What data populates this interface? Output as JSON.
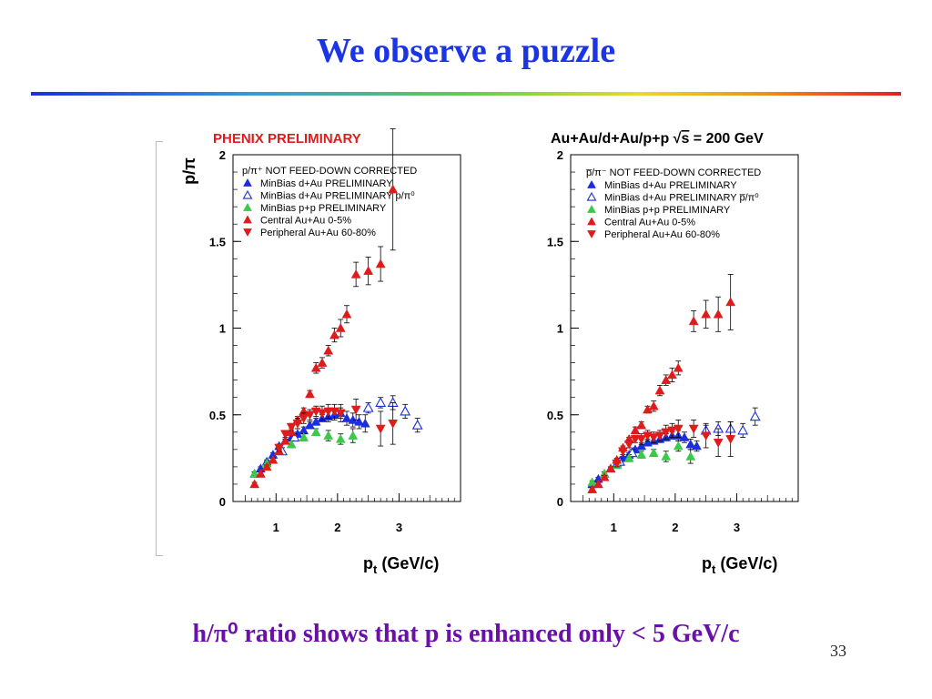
{
  "slide": {
    "title": "We observe a puzzle",
    "caption": "h/π⁰ ratio shows that p is enhanced only <  5 GeV/c",
    "page_number": "33"
  },
  "colors": {
    "title": "#1b35e6",
    "caption": "#6a10a8",
    "central": "#e01b1b",
    "dau": "#1a2ee0",
    "pp": "#3cc94a",
    "header_red": "#e01b1b"
  },
  "chart_data": [
    {
      "type": "scatter",
      "header": "PHENIX PRELIMINARY",
      "ylabel": "p/π",
      "xlabel": "p",
      "xlabel_sub": "t",
      "xlabel_unit": " (GeV/c)",
      "xlim": [
        0.3,
        4.0
      ],
      "ylim": [
        0,
        2
      ],
      "xticks": [
        "1",
        "2",
        "3"
      ],
      "yticks": [
        "0",
        "0.5",
        "1",
        "1.5",
        "2"
      ],
      "legend_title": "p/π⁺ NOT FEED-DOWN CORRECTED",
      "legend": [
        {
          "label": "MinBias d+Au PRELIMINARY",
          "marker": "up-filled",
          "color": "#1a2ee0"
        },
        {
          "label": "MinBias d+Au PRELIMINARY p/π⁰",
          "marker": "up-open",
          "color": "#1a2ee0"
        },
        {
          "label": "MinBias p+p PRELIMINARY",
          "marker": "up-filled",
          "color": "#3cc94a"
        },
        {
          "label": "Central    Au+Au  0-5%",
          "marker": "up-filled",
          "color": "#e01b1b"
        },
        {
          "label": "Peripheral Au+Au 60-80%",
          "marker": "down-filled",
          "color": "#e01b1b"
        }
      ],
      "series": [
        {
          "name": "MinBias d+Au PRELIMINARY",
          "marker": "up-filled",
          "color": "#1a2ee0",
          "x": [
            0.65,
            0.75,
            0.85,
            0.95,
            1.05,
            1.15,
            1.25,
            1.35,
            1.45,
            1.55,
            1.65,
            1.75,
            1.85,
            1.95,
            2.05,
            2.15,
            2.25,
            2.35,
            2.45
          ],
          "y": [
            0.16,
            0.19,
            0.23,
            0.27,
            0.32,
            0.35,
            0.37,
            0.39,
            0.41,
            0.44,
            0.46,
            0.48,
            0.49,
            0.5,
            0.51,
            0.48,
            0.47,
            0.46,
            0.45
          ],
          "err": [
            0.01,
            0.01,
            0.01,
            0.01,
            0.01,
            0.01,
            0.01,
            0.01,
            0.02,
            0.02,
            0.02,
            0.02,
            0.03,
            0.03,
            0.03,
            0.04,
            0.04,
            0.04,
            0.05
          ]
        },
        {
          "name": "MinBias d+Au PRELIMINARY p/π⁰",
          "marker": "up-open",
          "color": "#1a2ee0",
          "x": [
            1.1,
            1.3,
            2.5,
            2.7,
            2.9,
            3.1,
            3.3
          ],
          "y": [
            0.29,
            0.37,
            0.54,
            0.57,
            0.57,
            0.52,
            0.44
          ],
          "err": [
            0.02,
            0.02,
            0.03,
            0.03,
            0.04,
            0.04,
            0.04
          ]
        },
        {
          "name": "MinBias p+p PRELIMINARY",
          "marker": "up-filled",
          "color": "#3cc94a",
          "x": [
            0.65,
            0.85,
            1.05,
            1.25,
            1.45,
            1.65,
            1.85,
            2.05,
            2.25
          ],
          "y": [
            0.16,
            0.22,
            0.29,
            0.33,
            0.37,
            0.4,
            0.38,
            0.36,
            0.38
          ],
          "err": [
            0.01,
            0.01,
            0.01,
            0.02,
            0.02,
            0.02,
            0.03,
            0.03,
            0.04
          ]
        },
        {
          "name": "Central    Au+Au  0-5%",
          "marker": "up-filled",
          "color": "#e01b1b",
          "x": [
            0.65,
            0.75,
            0.85,
            0.95,
            1.05,
            1.15,
            1.25,
            1.35,
            1.45,
            1.55,
            1.65,
            1.75,
            1.85,
            1.95,
            2.05,
            2.15,
            2.3,
            2.5,
            2.7,
            2.9
          ],
          "y": [
            0.1,
            0.16,
            0.2,
            0.24,
            0.29,
            0.35,
            0.4,
            0.47,
            0.52,
            0.62,
            0.77,
            0.8,
            0.87,
            0.96,
            1.0,
            1.08,
            1.31,
            1.33,
            1.37,
            1.8
          ],
          "err": [
            0.01,
            0.01,
            0.01,
            0.01,
            0.01,
            0.01,
            0.02,
            0.02,
            0.02,
            0.02,
            0.03,
            0.03,
            0.03,
            0.04,
            0.05,
            0.05,
            0.07,
            0.08,
            0.1,
            0.35
          ]
        },
        {
          "name": "Peripheral Au+Au 60-80%",
          "marker": "down-filled",
          "color": "#e01b1b",
          "x": [
            1.05,
            1.15,
            1.25,
            1.35,
            1.45,
            1.55,
            1.65,
            1.75,
            1.85,
            1.95,
            2.05,
            2.3,
            2.7,
            2.9
          ],
          "y": [
            0.31,
            0.39,
            0.43,
            0.45,
            0.48,
            0.5,
            0.52,
            0.51,
            0.52,
            0.52,
            0.51,
            0.53,
            0.42,
            0.45
          ],
          "err": [
            0.02,
            0.02,
            0.02,
            0.03,
            0.03,
            0.03,
            0.03,
            0.04,
            0.04,
            0.04,
            0.05,
            0.06,
            0.1,
            0.12
          ]
        }
      ]
    },
    {
      "type": "scatter",
      "header": "Au+Au/d+Au/p+p ",
      "header_sqrt": "s",
      "header_tail": " = 200 GeV",
      "ylabel": "",
      "xlabel": "p",
      "xlabel_sub": "t",
      "xlabel_unit": " (GeV/c)",
      "xlim": [
        0.3,
        4.0
      ],
      "ylim": [
        0,
        2
      ],
      "xticks": [
        "1",
        "2",
        "3"
      ],
      "yticks": [
        "0",
        "0.5",
        "1",
        "1.5",
        "2"
      ],
      "legend_title": "p̅/π⁻ NOT FEED-DOWN CORRECTED",
      "legend": [
        {
          "label": "MinBias d+Au PRELIMINARY",
          "marker": "up-filled",
          "color": "#1a2ee0"
        },
        {
          "label": "MinBias d+Au PRELIMINARY p̅/π⁰",
          "marker": "up-open",
          "color": "#1a2ee0"
        },
        {
          "label": "MinBias p+p PRELIMINARY",
          "marker": "up-filled",
          "color": "#3cc94a"
        },
        {
          "label": "Central    Au+Au 0-5%",
          "marker": "up-filled",
          "color": "#e01b1b"
        },
        {
          "label": "Peripheral Au+Au 60-80%",
          "marker": "down-filled",
          "color": "#e01b1b"
        }
      ],
      "series": [
        {
          "name": "MinBias d+Au PRELIMINARY",
          "marker": "up-filled",
          "color": "#1a2ee0",
          "x": [
            0.65,
            0.75,
            0.85,
            0.95,
            1.05,
            1.15,
            1.25,
            1.35,
            1.45,
            1.55,
            1.65,
            1.75,
            1.85,
            1.95,
            2.05,
            2.15,
            2.25,
            2.35
          ],
          "y": [
            0.1,
            0.13,
            0.16,
            0.19,
            0.22,
            0.25,
            0.27,
            0.3,
            0.32,
            0.34,
            0.35,
            0.36,
            0.37,
            0.38,
            0.38,
            0.37,
            0.33,
            0.32
          ],
          "err": [
            0.01,
            0.01,
            0.01,
            0.01,
            0.01,
            0.01,
            0.01,
            0.01,
            0.02,
            0.02,
            0.02,
            0.02,
            0.02,
            0.02,
            0.03,
            0.03,
            0.03,
            0.03
          ]
        },
        {
          "name": "MinBias d+Au PRELIMINARY p̅/π⁰",
          "marker": "up-open",
          "color": "#1a2ee0",
          "x": [
            1.1,
            1.3,
            2.5,
            2.7,
            2.9,
            3.1,
            3.3
          ],
          "y": [
            0.23,
            0.28,
            0.41,
            0.42,
            0.42,
            0.41,
            0.49
          ],
          "err": [
            0.02,
            0.02,
            0.03,
            0.04,
            0.04,
            0.04,
            0.05
          ]
        },
        {
          "name": "MinBias p+p PRELIMINARY",
          "marker": "up-filled",
          "color": "#3cc94a",
          "x": [
            0.65,
            0.85,
            1.05,
            1.25,
            1.45,
            1.65,
            1.85,
            2.05,
            2.25
          ],
          "y": [
            0.11,
            0.16,
            0.21,
            0.25,
            0.27,
            0.28,
            0.26,
            0.32,
            0.26
          ],
          "err": [
            0.01,
            0.01,
            0.01,
            0.02,
            0.02,
            0.02,
            0.03,
            0.03,
            0.04
          ]
        },
        {
          "name": "Central    Au+Au 0-5%",
          "marker": "up-filled",
          "color": "#e01b1b",
          "x": [
            0.65,
            0.75,
            0.85,
            0.95,
            1.05,
            1.15,
            1.25,
            1.35,
            1.45,
            1.55,
            1.65,
            1.75,
            1.85,
            1.95,
            2.05,
            2.3,
            2.5,
            2.7,
            2.9
          ],
          "y": [
            0.07,
            0.1,
            0.14,
            0.19,
            0.24,
            0.31,
            0.36,
            0.41,
            0.44,
            0.53,
            0.55,
            0.64,
            0.7,
            0.73,
            0.77,
            1.04,
            1.08,
            1.08,
            1.15
          ],
          "err": [
            0.01,
            0.01,
            0.01,
            0.01,
            0.01,
            0.01,
            0.01,
            0.02,
            0.02,
            0.02,
            0.03,
            0.03,
            0.03,
            0.04,
            0.04,
            0.06,
            0.08,
            0.1,
            0.16
          ]
        },
        {
          "name": "Peripheral Au+Au 60-80%",
          "marker": "down-filled",
          "color": "#e01b1b",
          "x": [
            1.05,
            1.15,
            1.25,
            1.35,
            1.45,
            1.55,
            1.65,
            1.75,
            1.85,
            1.95,
            2.05,
            2.3,
            2.5,
            2.7,
            2.9
          ],
          "y": [
            0.22,
            0.29,
            0.33,
            0.36,
            0.36,
            0.38,
            0.37,
            0.38,
            0.4,
            0.41,
            0.42,
            0.42,
            0.38,
            0.34,
            0.36
          ],
          "err": [
            0.02,
            0.02,
            0.02,
            0.02,
            0.03,
            0.03,
            0.03,
            0.03,
            0.04,
            0.04,
            0.05,
            0.05,
            0.07,
            0.08,
            0.1
          ]
        }
      ]
    }
  ]
}
